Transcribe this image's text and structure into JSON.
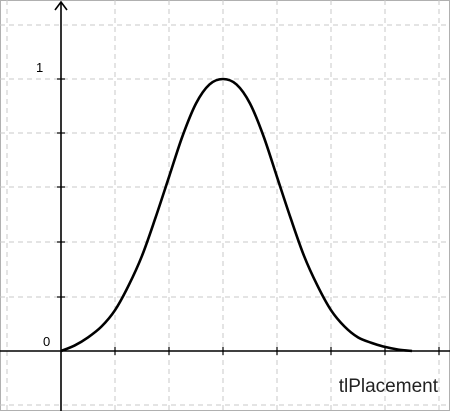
{
  "chart_data": {
    "type": "line",
    "xlabel": "tlPlacement",
    "ylabel": "",
    "y_tick_labels": [
      "0",
      "1"
    ],
    "ylim": [
      -0.1,
      1.2
    ],
    "xlim": [
      -1,
      7
    ],
    "grid": true,
    "x_tick_count": 7,
    "y_tick_count": 6,
    "series": [
      {
        "x": [
          0,
          0.25,
          0.5,
          0.75,
          1.0,
          1.25,
          1.5,
          1.75,
          2.0,
          2.25,
          2.5,
          2.75,
          3.0,
          3.25,
          3.5,
          3.75,
          4.0,
          4.25,
          4.5,
          4.75,
          5.0,
          5.25,
          5.5,
          5.75,
          6.0,
          6.25,
          6.5
        ],
        "y": [
          0.0,
          0.02,
          0.05,
          0.09,
          0.15,
          0.24,
          0.35,
          0.49,
          0.64,
          0.79,
          0.91,
          0.98,
          1.0,
          0.98,
          0.91,
          0.79,
          0.64,
          0.49,
          0.35,
          0.24,
          0.15,
          0.09,
          0.05,
          0.03,
          0.015,
          0.005,
          0.0
        ]
      }
    ]
  }
}
